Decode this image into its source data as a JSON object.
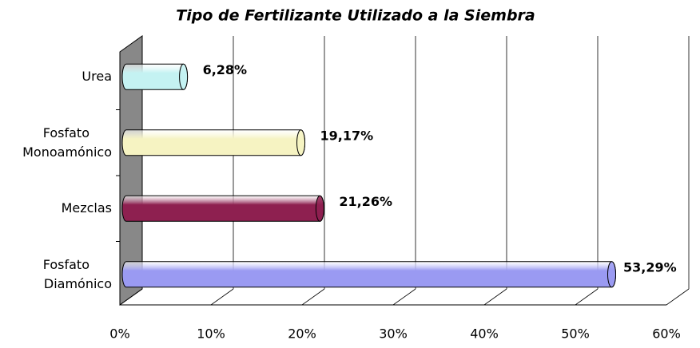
{
  "chart_data": {
    "type": "bar",
    "orientation": "horizontal",
    "title": "Tipo de Fertilizante Utilizado a la Siembra",
    "categories": [
      "Urea",
      "Fosfato Monoamónico",
      "Mezclas",
      "Fosfato Diamónico"
    ],
    "values": [
      6.28,
      19.17,
      21.26,
      53.29
    ],
    "value_labels": [
      "6,28%",
      "19,17%",
      "21,26%",
      "53,29%"
    ],
    "colors": [
      "#c4f2f2",
      "#f6f3c2",
      "#8e2050",
      "#9a9af2"
    ],
    "xlim": [
      0,
      60
    ],
    "xticks": [
      {
        "value": 0,
        "label": "0%"
      },
      {
        "value": 10,
        "label": "10%"
      },
      {
        "value": 20,
        "label": "20%"
      },
      {
        "value": 30,
        "label": "30%"
      },
      {
        "value": 40,
        "label": "40%"
      },
      {
        "value": 50,
        "label": "50%"
      },
      {
        "value": 60,
        "label": "60%"
      }
    ],
    "grid": true
  }
}
